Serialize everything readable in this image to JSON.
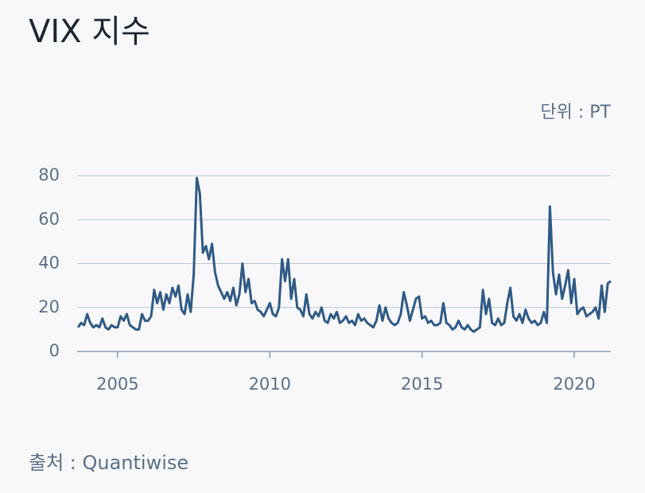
{
  "chart_data": {
    "type": "line",
    "title": "VIX 지수",
    "unit_label": "단위 : PT",
    "source": "출처 : Quantiwise",
    "x": [
      2003.7,
      2003.8,
      2003.9,
      2004.0,
      2004.1,
      2004.2,
      2004.3,
      2004.4,
      2004.5,
      2004.6,
      2004.7,
      2004.8,
      2004.9,
      2005.0,
      2005.1,
      2005.2,
      2005.3,
      2005.4,
      2005.5,
      2005.6,
      2005.7,
      2005.8,
      2005.9,
      2006.0,
      2006.1,
      2006.2,
      2006.3,
      2006.4,
      2006.5,
      2006.6,
      2006.7,
      2006.8,
      2006.9,
      2007.0,
      2007.1,
      2007.2,
      2007.3,
      2007.4,
      2007.5,
      2007.6,
      2007.7,
      2007.8,
      2007.9,
      2008.0,
      2008.1,
      2008.2,
      2008.3,
      2008.4,
      2008.5,
      2008.6,
      2008.7,
      2008.8,
      2008.9,
      2009.0,
      2009.1,
      2009.2,
      2009.3,
      2009.4,
      2009.5,
      2009.6,
      2009.7,
      2009.8,
      2009.9,
      2010.0,
      2010.1,
      2010.2,
      2010.3,
      2010.4,
      2010.5,
      2010.6,
      2010.7,
      2010.8,
      2010.9,
      2011.0,
      2011.1,
      2011.2,
      2011.3,
      2011.4,
      2011.5,
      2011.6,
      2011.7,
      2011.8,
      2011.9,
      2012.0,
      2012.1,
      2012.2,
      2012.3,
      2012.4,
      2012.5,
      2012.6,
      2012.7,
      2012.8,
      2012.9,
      2013.0,
      2013.1,
      2013.2,
      2013.3,
      2013.4,
      2013.5,
      2013.6,
      2013.7,
      2013.8,
      2013.9,
      2014.0,
      2014.1,
      2014.2,
      2014.3,
      2014.4,
      2014.5,
      2014.6,
      2014.7,
      2014.8,
      2014.9,
      2015.0,
      2015.1,
      2015.2,
      2015.3,
      2015.4,
      2015.5,
      2015.6,
      2015.7,
      2015.8,
      2015.9,
      2016.0,
      2016.1,
      2016.2,
      2016.3,
      2016.4,
      2016.5,
      2016.6,
      2016.7,
      2016.8,
      2016.9,
      2017.0,
      2017.1,
      2017.2,
      2017.3,
      2017.4,
      2017.5,
      2017.6,
      2017.7,
      2017.8,
      2017.9,
      2018.0,
      2018.1,
      2018.2,
      2018.3,
      2018.4,
      2018.5,
      2018.6,
      2018.7,
      2018.8,
      2018.9,
      2019.0,
      2019.1,
      2019.2,
      2019.3,
      2019.4,
      2019.5,
      2019.6,
      2019.7,
      2019.8,
      2019.9,
      2020.0,
      2020.1,
      2020.2,
      2020.3,
      2020.4,
      2020.5,
      2020.6,
      2020.7,
      2020.8,
      2020.9,
      2021.0,
      2021.1,
      2021.2
    ],
    "series": [
      {
        "color": "#2f5a85",
        "values": [
          11,
          13,
          12,
          17,
          13,
          11,
          12,
          11,
          15,
          11,
          10,
          12,
          11,
          11,
          16,
          14,
          17,
          12,
          11,
          10,
          10,
          17,
          14,
          14,
          16,
          28,
          22,
          27,
          19,
          26,
          22,
          29,
          25,
          30,
          19,
          17,
          26,
          18,
          35,
          79,
          72,
          45,
          48,
          42,
          49,
          36,
          30,
          27,
          24,
          27,
          23,
          29,
          21,
          26,
          40,
          27,
          33,
          22,
          23,
          19,
          18,
          16,
          19,
          22,
          17,
          16,
          20,
          42,
          32,
          42,
          24,
          33,
          20,
          19,
          16,
          26,
          17,
          15,
          18,
          16,
          20,
          14,
          13,
          17,
          15,
          18,
          13,
          14,
          16,
          13,
          14,
          12,
          17,
          14,
          15,
          13,
          12,
          11,
          14,
          21,
          14,
          20,
          15,
          13,
          12,
          13,
          17,
          27,
          21,
          14,
          19,
          24,
          25,
          15,
          16,
          13,
          14,
          12,
          12,
          13,
          22,
          13,
          12,
          10,
          11,
          14,
          11,
          10,
          12,
          10,
          9,
          10,
          11,
          28,
          17,
          24,
          13,
          12,
          15,
          12,
          13,
          22,
          29,
          16,
          14,
          17,
          13,
          19,
          15,
          13,
          14,
          12,
          13,
          18,
          13,
          66,
          36,
          26,
          35,
          24,
          30,
          37,
          22,
          33,
          17,
          19,
          20,
          16,
          17,
          18,
          20,
          15,
          30,
          18,
          31,
          32
        ]
      }
    ],
    "xlim": [
      2003.67,
      2021.2
    ],
    "xticks": [
      2005,
      2010,
      2015,
      2020
    ],
    "ylim": [
      0,
      80
    ],
    "yticks": [
      0,
      20,
      40,
      60,
      80
    ],
    "grid": true
  }
}
